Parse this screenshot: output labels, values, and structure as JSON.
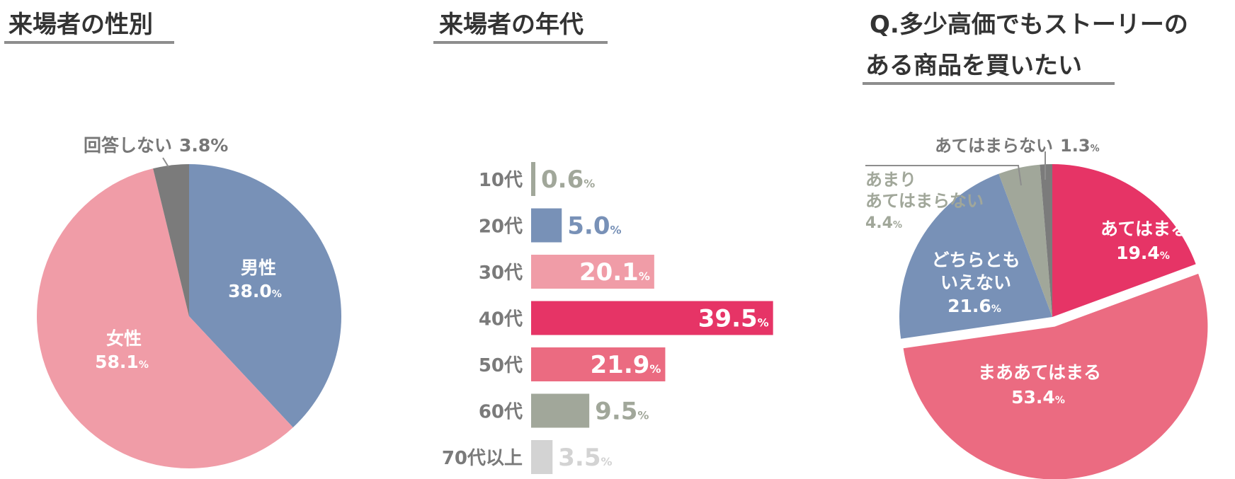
{
  "chart_data": [
    {
      "type": "pie",
      "title": "来場者の性別",
      "slices": [
        {
          "label": "男性",
          "value": 38.0,
          "display": "38.0",
          "color": "#7891b7"
        },
        {
          "label": "女性",
          "value": 58.1,
          "display": "58.1",
          "color": "#f09ca7"
        },
        {
          "label": "回答しない",
          "value": 3.8,
          "display": "3.8%",
          "color": "#7b7b7b"
        }
      ]
    },
    {
      "type": "bar",
      "title": "来場者の年代",
      "orientation": "horizontal",
      "categories": [
        "10代",
        "20代",
        "30代",
        "40代",
        "50代",
        "60代",
        "70代以上"
      ],
      "values": [
        0.6,
        5.0,
        20.1,
        39.5,
        21.9,
        9.5,
        3.5
      ],
      "labels": [
        "0.6",
        "5.0",
        "20.1",
        "39.5",
        "21.9",
        "9.5",
        "3.5"
      ],
      "colors": [
        "#a1a79a",
        "#7891b7",
        "#f09ca7",
        "#e63466",
        "#eb6b81",
        "#a1a79a",
        "#d3d3d3"
      ],
      "unit": "%"
    },
    {
      "type": "pie",
      "title_lines": [
        "Q.多少高価でもストーリーの",
        "ある商品を買いたい"
      ],
      "slices": [
        {
          "label": "あてはまる",
          "value": 19.4,
          "display": "19.4",
          "color": "#e63466"
        },
        {
          "label": "まああてはまる",
          "value": 53.4,
          "display": "53.4",
          "color": "#eb6b81"
        },
        {
          "label_lines": [
            "どちらとも",
            "いえない"
          ],
          "value": 21.6,
          "display": "21.6",
          "color": "#7891b7"
        },
        {
          "label_lines": [
            "あまり",
            "あてはまらない"
          ],
          "value": 4.4,
          "display": "4.4",
          "color": "#a1a79a"
        },
        {
          "label": "あてはまらない",
          "value": 1.3,
          "display": "1.3",
          "color": "#7b7b7b"
        }
      ]
    }
  ],
  "unit_symbol": "%"
}
